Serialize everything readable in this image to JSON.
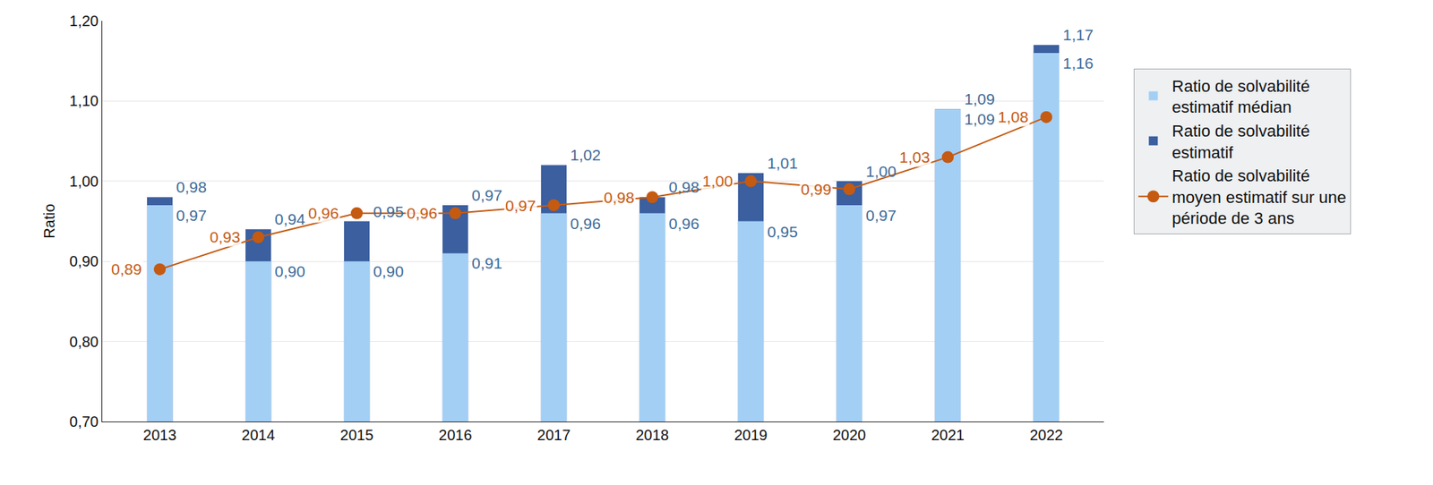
{
  "chart_data": {
    "type": "bar",
    "y_label": "Ratio",
    "categories": [
      "2013",
      "2014",
      "2015",
      "2016",
      "2017",
      "2018",
      "2019",
      "2020",
      "2021",
      "2022"
    ],
    "ylim": [
      0.7,
      1.2
    ],
    "yticks": [
      {
        "value": 0.7,
        "label": "0,70"
      },
      {
        "value": 0.8,
        "label": "0,80"
      },
      {
        "value": 0.9,
        "label": "0,90"
      },
      {
        "value": 1.0,
        "label": "1,00"
      },
      {
        "value": 1.1,
        "label": "1,10"
      },
      {
        "value": 1.2,
        "label": "1,20"
      }
    ],
    "grid": true,
    "stacked": false,
    "data_labels": true,
    "legend": "right",
    "series": [
      {
        "name": "Ratio de solvabilité estimatif médian",
        "color": "#a3cff5",
        "values": [
          0.97,
          0.9,
          0.9,
          0.91,
          0.96,
          0.96,
          0.95,
          0.97,
          1.09,
          1.16
        ],
        "value_labels": [
          "0,97",
          "0,90",
          "0,90",
          "0,91",
          "0,96",
          "0,96",
          "0,95",
          "0,97",
          "1,09",
          "1,16"
        ]
      },
      {
        "name": "Ratio de solvabilité estimatif",
        "color": "#3b5f9f",
        "values": [
          0.98,
          0.94,
          0.95,
          0.97,
          1.02,
          0.98,
          1.01,
          1.0,
          1.09,
          1.17
        ],
        "value_labels": [
          "0,98",
          "0,94",
          "0,95",
          "0,97",
          "1,02",
          "0,98",
          "1,01",
          "1,00",
          "1,09",
          "1,17"
        ]
      },
      {
        "name": "Ratio de solvabilité moyen estimatif sur une période de 3 ans",
        "type": "line",
        "color": "#c55a11",
        "marker": "circle",
        "line_style": "solid",
        "values": [
          0.89,
          0.93,
          0.96,
          0.96,
          0.97,
          0.98,
          1.0,
          0.99,
          1.03,
          1.08
        ],
        "value_labels": [
          "0,89",
          "0,93",
          "0,96",
          "0,96",
          "0,97",
          "0,98",
          "1,00",
          "0,99",
          "1,03",
          "1,08"
        ]
      }
    ]
  }
}
